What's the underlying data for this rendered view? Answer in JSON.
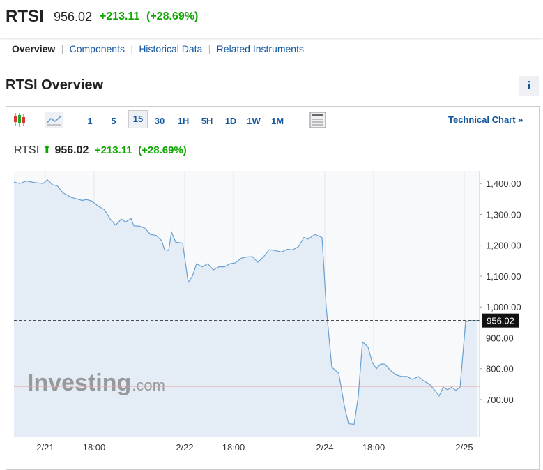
{
  "header": {
    "symbol": "RTSI",
    "price": "956.02",
    "change": "+213.11",
    "change_pct": "(+28.69%)"
  },
  "tabs": [
    "Overview",
    "Components",
    "Historical Data",
    "Related Instruments"
  ],
  "section_title": "RTSI Overview",
  "info_button": "i",
  "toolbar": {
    "intervals": [
      "1",
      "5",
      "15",
      "30",
      "1H",
      "5H",
      "1D",
      "1W",
      "1M"
    ],
    "selected_interval": 2,
    "technical_chart": "Technical Chart »"
  },
  "chart_data": {
    "type": "area",
    "color": "#6a9fcf",
    "fill": "#e4edf6",
    "x": [
      0,
      8,
      18,
      30,
      42,
      48,
      56,
      62,
      70,
      76,
      82,
      90,
      98,
      104,
      112,
      120,
      130,
      138,
      146,
      154,
      160,
      168,
      172,
      180,
      188,
      196,
      204,
      212,
      216,
      222,
      226,
      232,
      242,
      250,
      256,
      262,
      270,
      278,
      286,
      294,
      302,
      310,
      318,
      326,
      334,
      342,
      350,
      358,
      366,
      374,
      384,
      392,
      400,
      408,
      416,
      422,
      432,
      442,
      448,
      456,
      466,
      474,
      480,
      488,
      494,
      500,
      508,
      514,
      520,
      526,
      532,
      540,
      548,
      556,
      564,
      572,
      580,
      588,
      596,
      604,
      610,
      616,
      622,
      628,
      634,
      640,
      648,
      656,
      664
    ],
    "values": [
      1405,
      1400,
      1408,
      1403,
      1400,
      1412,
      1395,
      1393,
      1370,
      1363,
      1355,
      1350,
      1345,
      1348,
      1343,
      1328,
      1315,
      1285,
      1265,
      1285,
      1275,
      1287,
      1263,
      1262,
      1255,
      1235,
      1232,
      1215,
      1185,
      1183,
      1243,
      1210,
      1207,
      1080,
      1100,
      1140,
      1130,
      1140,
      1120,
      1130,
      1130,
      1140,
      1143,
      1158,
      1162,
      1163,
      1145,
      1162,
      1185,
      1183,
      1178,
      1187,
      1185,
      1195,
      1225,
      1220,
      1235,
      1225,
      1000,
      805,
      785,
      680,
      622,
      620,
      710,
      887,
      870,
      820,
      800,
      815,
      815,
      795,
      780,
      775,
      775,
      765,
      775,
      760,
      750,
      730,
      712,
      740,
      732,
      740,
      730,
      740,
      952,
      956,
      956.02
    ],
    "xlim": [
      0,
      668
    ],
    "ylim": [
      578,
      1441
    ],
    "xticks": [
      {
        "value": 45,
        "label": "2/21"
      },
      {
        "value": 115,
        "label": "18:00"
      },
      {
        "value": 245,
        "label": "2/22"
      },
      {
        "value": 315,
        "label": "18:00"
      },
      {
        "value": 446,
        "label": "2/24"
      },
      {
        "value": 516,
        "label": "18:00"
      },
      {
        "value": 646,
        "label": "2/25"
      }
    ],
    "yticks": [
      {
        "value": 700,
        "label": "700.00"
      },
      {
        "value": 800,
        "label": "800.00"
      },
      {
        "value": 900,
        "label": "900.00"
      },
      {
        "value": 1000,
        "label": "1,000.00"
      },
      {
        "value": 1100,
        "label": "1,100.00"
      },
      {
        "value": 1200,
        "label": "1,200.00"
      },
      {
        "value": 1300,
        "label": "1,300.00"
      },
      {
        "value": 1400,
        "label": "1,400.00"
      }
    ],
    "last_price": 956.02,
    "previous_close": 742.91,
    "watermark": "Investing",
    "watermark_suffix": ".com"
  }
}
